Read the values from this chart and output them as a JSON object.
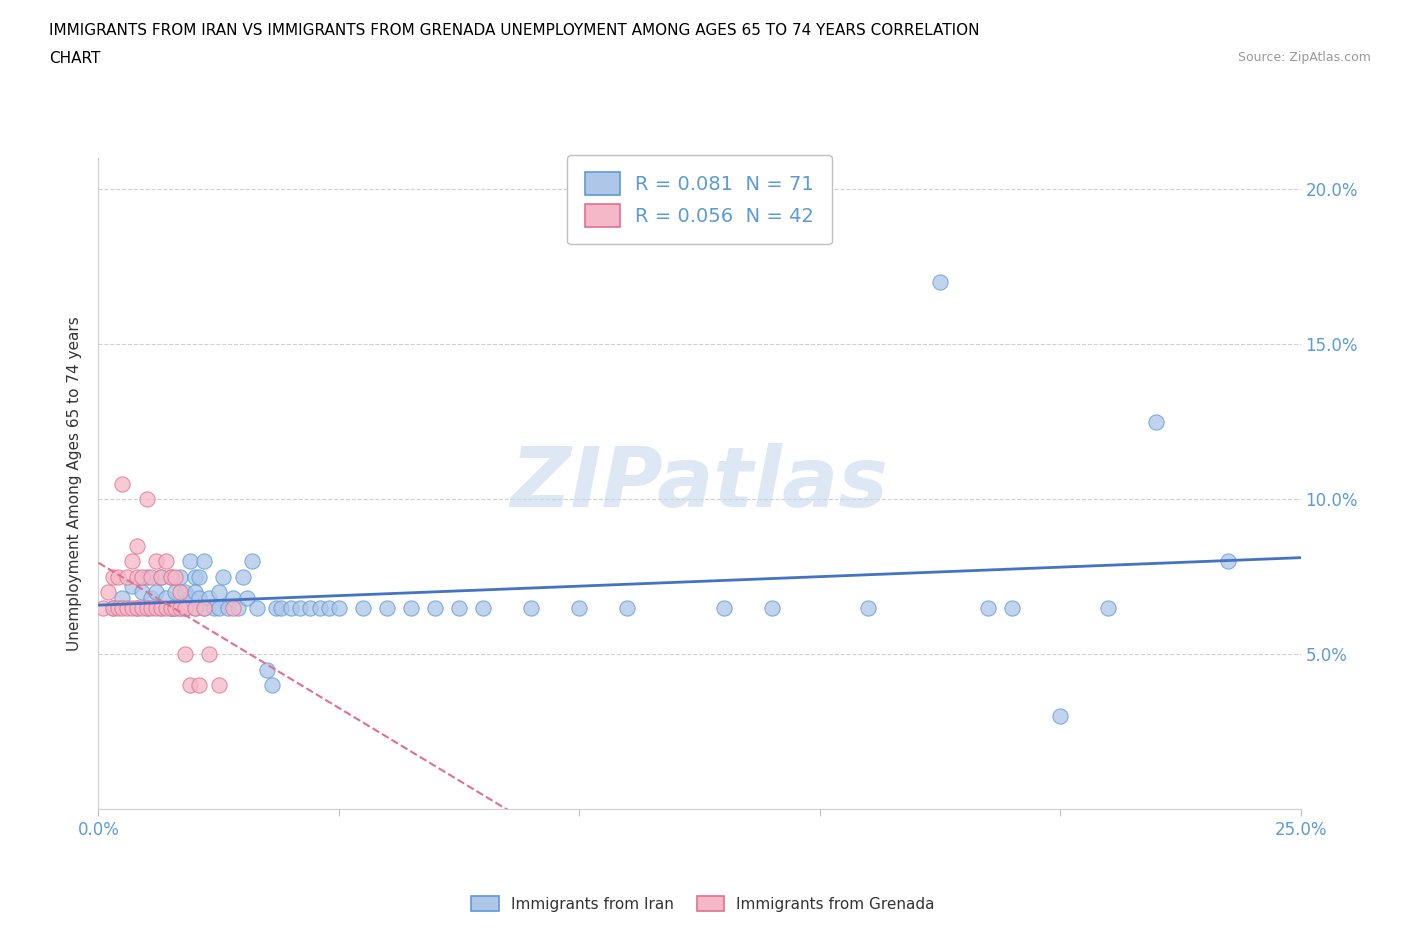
{
  "title_line1": "IMMIGRANTS FROM IRAN VS IMMIGRANTS FROM GRENADA UNEMPLOYMENT AMONG AGES 65 TO 74 YEARS CORRELATION",
  "title_line2": "CHART",
  "source_text": "Source: ZipAtlas.com",
  "ylabel": "Unemployment Among Ages 65 to 74 years",
  "xlim": [
    0.0,
    0.25
  ],
  "ylim": [
    0.0,
    0.21
  ],
  "iran_color": "#aec6e8",
  "iran_edge_color": "#5b9bd5",
  "grenada_color": "#f4b8c8",
  "grenada_edge_color": "#e07090",
  "iran_R": 0.081,
  "iran_N": 71,
  "grenada_R": 0.056,
  "grenada_N": 42,
  "iran_trend_color": "#4472c4",
  "grenada_trend_color": "#e07090",
  "watermark": "ZIPatlas",
  "legend_label_iran": "Immigrants from Iran",
  "legend_label_grenada": "Immigrants from Grenada",
  "iran_scatter_x": [
    0.003,
    0.005,
    0.007,
    0.008,
    0.009,
    0.01,
    0.01,
    0.011,
    0.012,
    0.013,
    0.013,
    0.014,
    0.015,
    0.015,
    0.015,
    0.016,
    0.016,
    0.017,
    0.017,
    0.018,
    0.018,
    0.019,
    0.019,
    0.02,
    0.02,
    0.02,
    0.021,
    0.021,
    0.022,
    0.022,
    0.023,
    0.024,
    0.025,
    0.025,
    0.026,
    0.027,
    0.028,
    0.029,
    0.03,
    0.031,
    0.032,
    0.033,
    0.035,
    0.036,
    0.037,
    0.038,
    0.04,
    0.042,
    0.044,
    0.046,
    0.048,
    0.05,
    0.055,
    0.06,
    0.065,
    0.07,
    0.075,
    0.08,
    0.09,
    0.1,
    0.11,
    0.13,
    0.14,
    0.16,
    0.175,
    0.185,
    0.19,
    0.2,
    0.21,
    0.22,
    0.235
  ],
  "iran_scatter_y": [
    0.065,
    0.07,
    0.072,
    0.07,
    0.065,
    0.065,
    0.075,
    0.068,
    0.07,
    0.065,
    0.075,
    0.068,
    0.065,
    0.07,
    0.075,
    0.065,
    0.07,
    0.075,
    0.065,
    0.075,
    0.065,
    0.08,
    0.065,
    0.075,
    0.065,
    0.07,
    0.068,
    0.075,
    0.065,
    0.08,
    0.07,
    0.065,
    0.07,
    0.065,
    0.075,
    0.065,
    0.065,
    0.068,
    0.075,
    0.065,
    0.08,
    0.065,
    0.045,
    0.04,
    0.065,
    0.065,
    0.065,
    0.065,
    0.065,
    0.065,
    0.065,
    0.065,
    0.065,
    0.065,
    0.065,
    0.065,
    0.065,
    0.065,
    0.065,
    0.065,
    0.065,
    0.065,
    0.065,
    0.065,
    0.17,
    0.065,
    0.065,
    0.03,
    0.065,
    0.125,
    0.08
  ],
  "iran_scatter_y_real": [
    0.065,
    0.068,
    0.072,
    0.065,
    0.07,
    0.065,
    0.075,
    0.068,
    0.07,
    0.065,
    0.075,
    0.068,
    0.065,
    0.075,
    0.065,
    0.07,
    0.065,
    0.075,
    0.065,
    0.07,
    0.065,
    0.08,
    0.068,
    0.075,
    0.065,
    0.07,
    0.068,
    0.075,
    0.065,
    0.08,
    0.068,
    0.065,
    0.07,
    0.065,
    0.075,
    0.065,
    0.068,
    0.065,
    0.075,
    0.068,
    0.08,
    0.065,
    0.045,
    0.04,
    0.065,
    0.065,
    0.065,
    0.065,
    0.065,
    0.065,
    0.065,
    0.065,
    0.065,
    0.065,
    0.065,
    0.065,
    0.065,
    0.065,
    0.065,
    0.065,
    0.065,
    0.065,
    0.065,
    0.065,
    0.17,
    0.065,
    0.065,
    0.03,
    0.065,
    0.125,
    0.08
  ],
  "grenada_scatter_x": [
    0.001,
    0.002,
    0.003,
    0.003,
    0.004,
    0.004,
    0.005,
    0.005,
    0.006,
    0.006,
    0.007,
    0.007,
    0.008,
    0.008,
    0.008,
    0.009,
    0.009,
    0.01,
    0.01,
    0.011,
    0.011,
    0.012,
    0.012,
    0.013,
    0.013,
    0.014,
    0.014,
    0.015,
    0.015,
    0.016,
    0.016,
    0.017,
    0.017,
    0.018,
    0.018,
    0.019,
    0.02,
    0.021,
    0.022,
    0.023,
    0.025,
    0.028
  ],
  "grenada_scatter_y": [
    0.065,
    0.07,
    0.065,
    0.075,
    0.065,
    0.075,
    0.065,
    0.105,
    0.065,
    0.075,
    0.065,
    0.08,
    0.065,
    0.075,
    0.085,
    0.065,
    0.075,
    0.065,
    0.1,
    0.065,
    0.075,
    0.065,
    0.08,
    0.065,
    0.075,
    0.065,
    0.08,
    0.065,
    0.075,
    0.065,
    0.075,
    0.065,
    0.07,
    0.065,
    0.05,
    0.04,
    0.065,
    0.04,
    0.065,
    0.05,
    0.04,
    0.065
  ]
}
